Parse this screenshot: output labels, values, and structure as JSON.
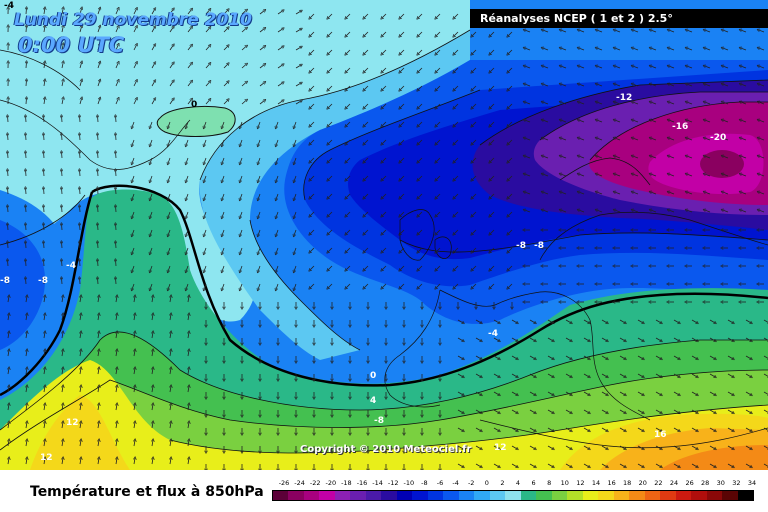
{
  "header": {
    "date": "Lundi 29 novembre 2010",
    "time": "0:00 UTC",
    "source": "Réanalyses NCEP ( 1 et 2 ) 2.5°"
  },
  "copyright": "Copyright © 2010 Meteociel.fr",
  "caption": "Température et flux à 850hPa",
  "contour_labels": [
    "-4",
    "0",
    "-12",
    "-16",
    "-20",
    "-8",
    "-8",
    "-8",
    "-4",
    "-8",
    "-4",
    "0",
    "4",
    "-8",
    "12",
    "12",
    "16",
    "12"
  ],
  "scale": {
    "labels": [
      "-26",
      "-24",
      "-22",
      "-20",
      "-18",
      "-16",
      "-14",
      "-12",
      "-10",
      "-8",
      "-6",
      "-4",
      "-2",
      "0",
      "2",
      "4",
      "6",
      "8",
      "10",
      "12",
      "14",
      "16",
      "18",
      "20",
      "22",
      "24",
      "26",
      "28",
      "30",
      "32",
      "34"
    ],
    "colors": [
      "#5c0038",
      "#8a0060",
      "#a8007f",
      "#c200a6",
      "#8c20b4",
      "#6a1fb0",
      "#4a1aa8",
      "#2a0ca0",
      "#0000b4",
      "#0014d0",
      "#0034e0",
      "#0a58ee",
      "#1a82f4",
      "#30a8f6",
      "#5cc8f2",
      "#8ee2ee",
      "#2ab888",
      "#44c050",
      "#7ad040",
      "#b2e028",
      "#e8ee1a",
      "#f4d81a",
      "#f8b21a",
      "#f48a16",
      "#ee6414",
      "#e03a12",
      "#cc1a10",
      "#b00e0c",
      "#8a0808",
      "#5a0404",
      "#000000"
    ]
  },
  "map": {
    "fill_colors": {
      "cyan_light": "#8ee6f0",
      "cyan": "#5cc8f2",
      "sky": "#30a8f6",
      "blue": "#1a82f4",
      "mid_blue": "#0a58ee",
      "deep_blue": "#0034e0",
      "navy": "#0014d0",
      "dark_navy": "#0000b4",
      "indigo": "#2a0ca0",
      "violet": "#6a1fb0",
      "magenta": "#a8007f",
      "deep_magenta": "#c200a6",
      "green": "#2ab888",
      "green2": "#44c050",
      "yellowgreen": "#7ad040",
      "yellow": "#e8ee1a",
      "gold": "#f4d81a",
      "orange": "#f8b21a",
      "dark_orange": "#f48a16"
    }
  }
}
